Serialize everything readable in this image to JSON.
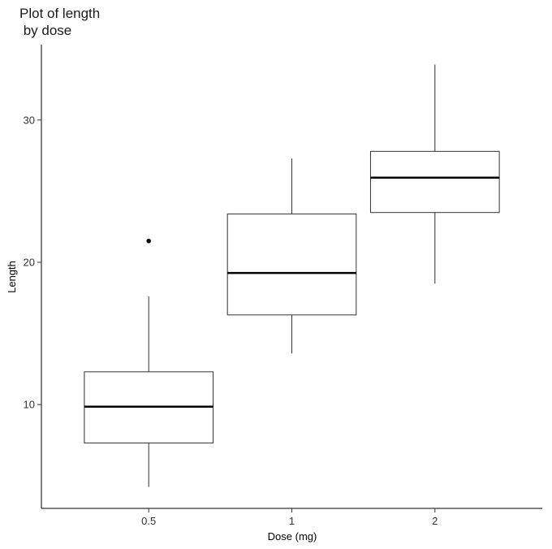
{
  "chart_data": {
    "type": "box",
    "title": "Plot of length\n by dose",
    "title_lines": [
      "Plot of length",
      " by dose"
    ],
    "xlabel": "Dose (mg)",
    "ylabel": "Length",
    "categories": [
      "0.5",
      "1",
      "2"
    ],
    "ylim": [
      2.7,
      35.3
    ],
    "yticks": [
      10,
      20,
      30
    ],
    "ytick_labels": [
      "10",
      "20",
      "30"
    ],
    "grid": false,
    "legend": "none",
    "colors": {
      "box_stroke": "#333333",
      "median": "#000000",
      "outlier": "#000000",
      "axis": "#000000"
    },
    "boxes": [
      {
        "category": "0.5",
        "min": 4.2,
        "q1": 7.3,
        "median": 9.85,
        "q3": 12.3,
        "max": 17.6,
        "outliers": [
          21.5
        ]
      },
      {
        "category": "1",
        "min": 13.6,
        "q1": 16.3,
        "median": 19.25,
        "q3": 23.4,
        "max": 27.3,
        "outliers": []
      },
      {
        "category": "2",
        "min": 18.5,
        "q1": 23.5,
        "median": 25.95,
        "q3": 27.8,
        "max": 33.9,
        "outliers": []
      }
    ]
  }
}
